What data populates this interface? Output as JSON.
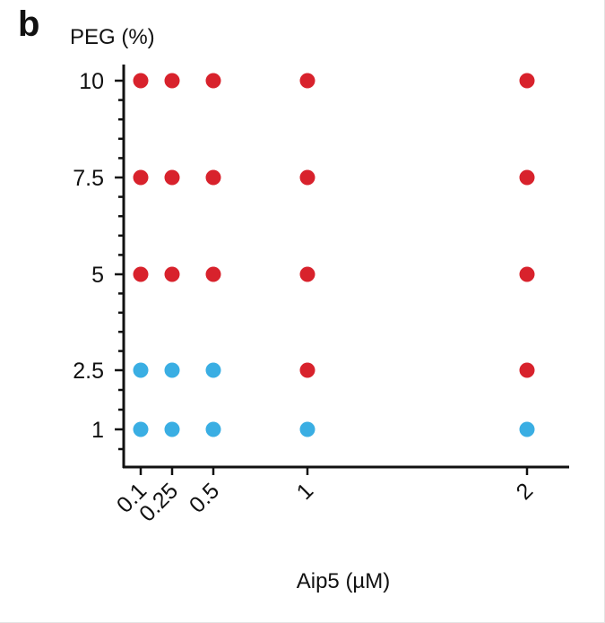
{
  "panel_letter": "b",
  "chart_data": {
    "type": "scatter",
    "title": "",
    "ylabel": "PEG (%)",
    "xlabel": "Aip5 (µM)",
    "x_ticks": [
      "0.1",
      "0.25",
      "0.5",
      "1",
      "2"
    ],
    "y_ticks": [
      "1",
      "2.5",
      "5",
      "7.5",
      "10"
    ],
    "grid": false,
    "colors": {
      "red": "#d8222c",
      "blue": "#3aaee3"
    },
    "points": [
      {
        "x": "0.1",
        "y": "10",
        "color": "red"
      },
      {
        "x": "0.25",
        "y": "10",
        "color": "red"
      },
      {
        "x": "0.5",
        "y": "10",
        "color": "red"
      },
      {
        "x": "1",
        "y": "10",
        "color": "red"
      },
      {
        "x": "2",
        "y": "10",
        "color": "red"
      },
      {
        "x": "0.1",
        "y": "7.5",
        "color": "red"
      },
      {
        "x": "0.25",
        "y": "7.5",
        "color": "red"
      },
      {
        "x": "0.5",
        "y": "7.5",
        "color": "red"
      },
      {
        "x": "1",
        "y": "7.5",
        "color": "red"
      },
      {
        "x": "2",
        "y": "7.5",
        "color": "red"
      },
      {
        "x": "0.1",
        "y": "5",
        "color": "red"
      },
      {
        "x": "0.25",
        "y": "5",
        "color": "red"
      },
      {
        "x": "0.5",
        "y": "5",
        "color": "red"
      },
      {
        "x": "1",
        "y": "5",
        "color": "red"
      },
      {
        "x": "2",
        "y": "5",
        "color": "red"
      },
      {
        "x": "0.1",
        "y": "2.5",
        "color": "blue"
      },
      {
        "x": "0.25",
        "y": "2.5",
        "color": "blue"
      },
      {
        "x": "0.5",
        "y": "2.5",
        "color": "blue"
      },
      {
        "x": "1",
        "y": "2.5",
        "color": "red"
      },
      {
        "x": "2",
        "y": "2.5",
        "color": "red"
      },
      {
        "x": "0.1",
        "y": "1",
        "color": "blue"
      },
      {
        "x": "0.25",
        "y": "1",
        "color": "blue"
      },
      {
        "x": "0.5",
        "y": "1",
        "color": "blue"
      },
      {
        "x": "1",
        "y": "1",
        "color": "blue"
      },
      {
        "x": "2",
        "y": "1",
        "color": "blue"
      }
    ]
  }
}
